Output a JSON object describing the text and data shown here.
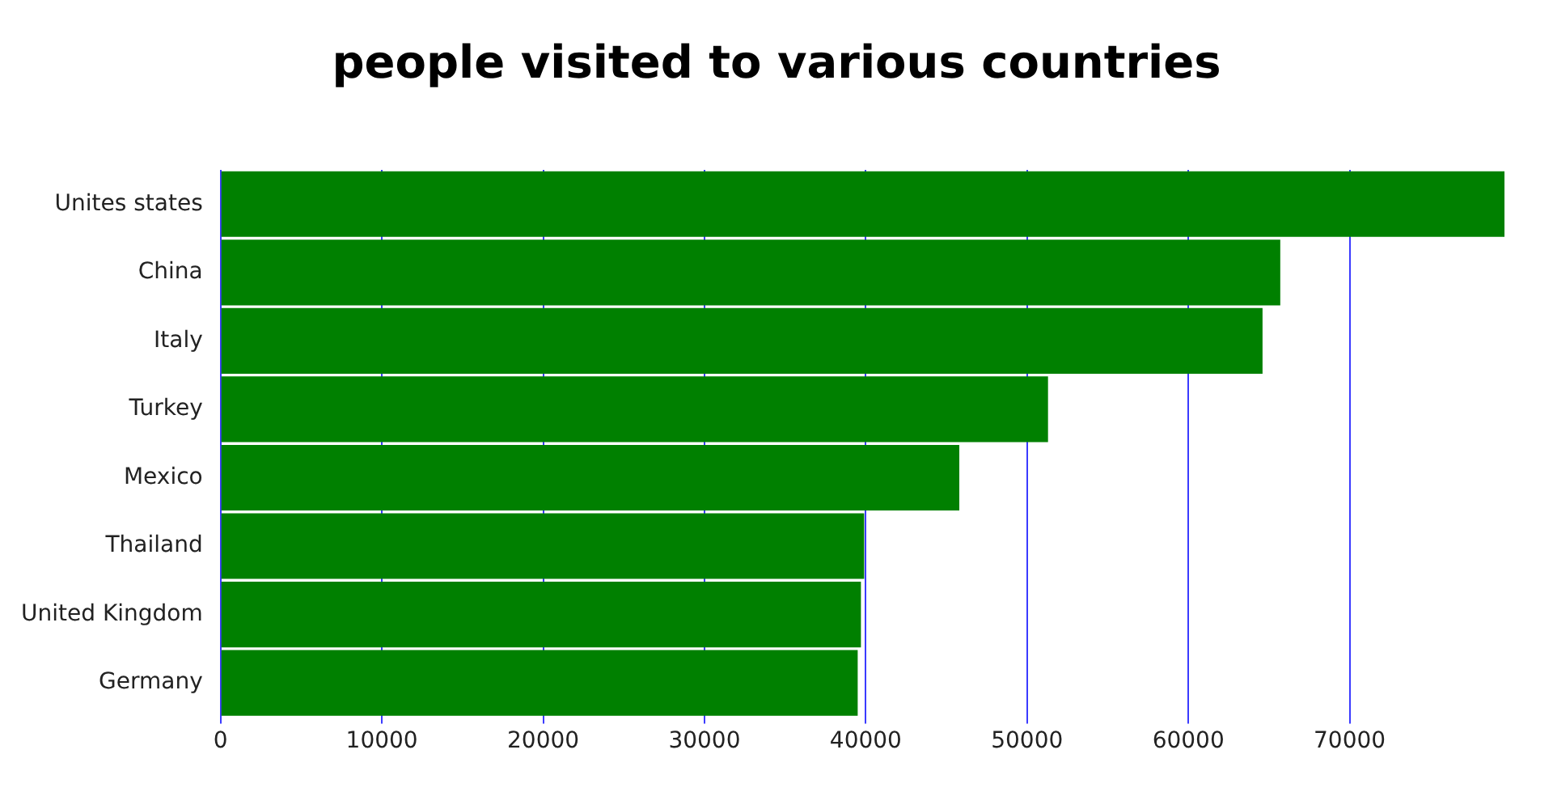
{
  "chart_data": {
    "type": "bar",
    "orientation": "horizontal",
    "title": "people visited to various countries",
    "categories": [
      "Unites states",
      "China",
      "Italy",
      "Turkey",
      "Mexico",
      "Thailand",
      "United Kingdom",
      "Germany"
    ],
    "values": [
      79600,
      65700,
      64600,
      51300,
      45800,
      39900,
      39700,
      39500
    ],
    "color": "#008000",
    "xlim": [
      0,
      79600
    ],
    "xticks": [
      0,
      10000,
      20000,
      30000,
      40000,
      50000,
      60000,
      70000
    ],
    "grid": "x",
    "legend": false
  }
}
